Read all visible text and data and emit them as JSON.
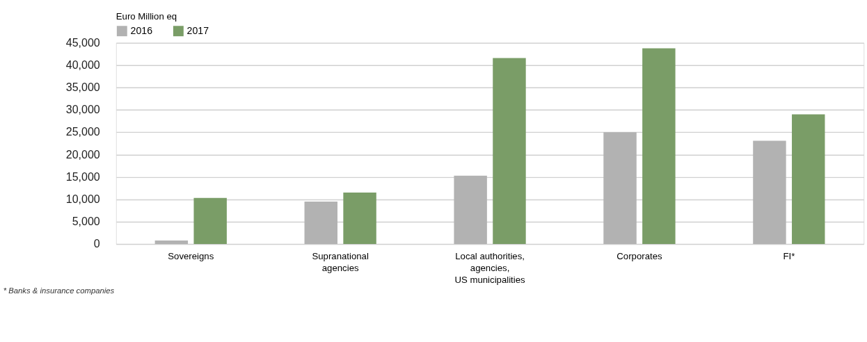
{
  "chart_data": {
    "type": "bar",
    "legend_title": "Euro Million eq",
    "categories": [
      "Sovereigns",
      "Supranational\nagencies",
      "Local authorities,\nagencies,\nUS municipalities",
      "Corporates",
      "FI*"
    ],
    "series": [
      {
        "name": "2016",
        "color": "#b2b2b2",
        "values": [
          800,
          9500,
          15300,
          25000,
          23100
        ]
      },
      {
        "name": "2017",
        "color": "#7a9d67",
        "values": [
          10300,
          11500,
          41600,
          43800,
          29000
        ]
      }
    ],
    "ylim": [
      0,
      45000
    ],
    "yticks": [
      {
        "value": 0,
        "label": "0"
      },
      {
        "value": 5000,
        "label": "5,000"
      },
      {
        "value": 10000,
        "label": "10,000"
      },
      {
        "value": 15000,
        "label": "15,000"
      },
      {
        "value": 20000,
        "label": "20,000"
      },
      {
        "value": 25000,
        "label": "25,000"
      },
      {
        "value": 30000,
        "label": "30,000"
      },
      {
        "value": 35000,
        "label": "35,000"
      },
      {
        "value": 40000,
        "label": "40,000"
      },
      {
        "value": 45000,
        "label": "45,000"
      }
    ],
    "grid": "y",
    "legend": "top left",
    "annotations": [
      "* Banks & insurance companies"
    ]
  }
}
